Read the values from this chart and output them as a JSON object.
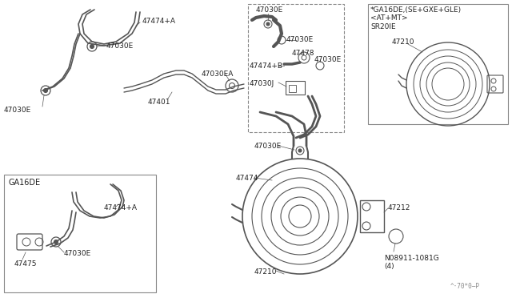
{
  "bg_color": "#ffffff",
  "line_color": "#555555",
  "text_color": "#222222",
  "labels": {
    "top_right_header": "*GA16DE,(SE+GXE+GLE)\n<AT+MT>\nSR20IE",
    "part_47210_tr": "47210",
    "part_47212": "47212",
    "part_47474A_main": "47474+A",
    "part_47030E_clamp1": "47030E",
    "part_47030E_clamp2": "47030E",
    "part_47030EA": "47030EA",
    "part_47401": "47401",
    "part_47030E_det1": "47030E",
    "part_47030E_det2": "47030E",
    "part_47030E_det3": "47030E",
    "part_47478": "47478",
    "part_47474B": "47474+B",
    "part_47030J": "47030J",
    "part_47474": "47474",
    "part_47030E_servo": "47030E",
    "part_47210_main": "47210",
    "part_N08911": "N08911-1081G\n(4)",
    "ga16de_box": "GA16DE",
    "part_47474A_bot": "47474+A",
    "part_47030E_bot": "47030E",
    "part_47475": "47475",
    "watermark": "^·70*0―P"
  }
}
